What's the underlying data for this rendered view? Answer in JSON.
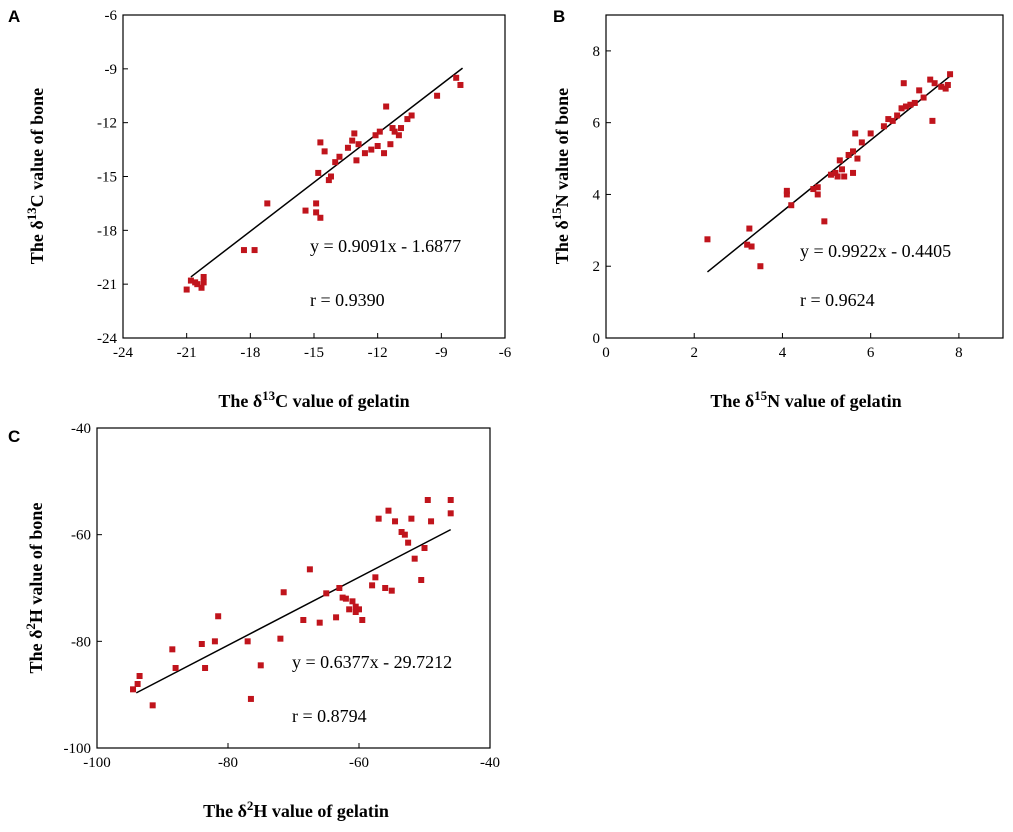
{
  "figure": {
    "marker_color": "#c0141c",
    "line_color": "#000000"
  },
  "chart_data": [
    {
      "panel": "A",
      "type": "scatter",
      "xlabel_prefix": "The δ",
      "xlabel_sup": "13",
      "xlabel_suffix": "C value of gelatin",
      "ylabel_prefix": "The δ",
      "ylabel_sup": "13",
      "ylabel_suffix": "C value of bone",
      "xlim": [
        -24,
        -6
      ],
      "ylim": [
        -24,
        -6
      ],
      "xticks": [
        -24,
        -21,
        -18,
        -15,
        -12,
        -9,
        -6
      ],
      "yticks": [
        -24,
        -21,
        -18,
        -15,
        -12,
        -9,
        -6
      ],
      "equation": "y = 0.9091x - 1.6877",
      "r_label": "r = 0.9390",
      "fit": {
        "slope": 0.9091,
        "intercept": -1.6877,
        "x_range": [
          -20.8,
          -8.0
        ]
      },
      "x": [
        -21.0,
        -20.8,
        -20.6,
        -20.5,
        -20.3,
        -20.2,
        -20.2,
        -18.3,
        -17.8,
        -17.2,
        -15.4,
        -14.9,
        -14.9,
        -14.7,
        -14.7,
        -14.5,
        -14.3,
        -14.2,
        -14.8,
        -13.4,
        -13.2,
        -13.1,
        -13.0,
        -12.9,
        -12.6,
        -12.3,
        -12.1,
        -12.0,
        -11.9,
        -11.7,
        -11.6,
        -11.4,
        -11.3,
        -11.2,
        -11.0,
        -10.9,
        -10.6,
        -10.4,
        -9.2,
        -8.3,
        -8.1,
        -14.0,
        -13.8
      ],
      "y": [
        -21.3,
        -20.8,
        -20.9,
        -21.0,
        -21.2,
        -20.9,
        -20.6,
        -19.1,
        -19.1,
        -16.5,
        -16.9,
        -16.5,
        -17.0,
        -17.3,
        -13.1,
        -13.6,
        -15.2,
        -15.0,
        -14.8,
        -13.4,
        -13.0,
        -12.6,
        -14.1,
        -13.2,
        -13.7,
        -13.5,
        -12.7,
        -13.3,
        -12.5,
        -13.7,
        -11.1,
        -13.2,
        -12.3,
        -12.5,
        -12.7,
        -12.3,
        -11.8,
        -11.6,
        -10.5,
        -9.5,
        -9.9,
        -14.2,
        -13.9
      ]
    },
    {
      "panel": "B",
      "type": "scatter",
      "xlabel_prefix": "The δ",
      "xlabel_sup": "15",
      "xlabel_suffix": "N value of gelatin",
      "ylabel_prefix": "The δ",
      "ylabel_sup": "15",
      "ylabel_suffix": "N value of bone",
      "xlim": [
        0,
        9
      ],
      "ylim": [
        0,
        9
      ],
      "xticks": [
        0,
        2,
        4,
        6,
        8
      ],
      "yticks": [
        0,
        2,
        4,
        6,
        8
      ],
      "equation": "y = 0.9922x - 0.4405",
      "r_label": "r = 0.9624",
      "fit": {
        "slope": 0.9922,
        "intercept": -0.4405,
        "x_range": [
          2.3,
          7.85
        ]
      },
      "x": [
        2.3,
        3.2,
        3.3,
        3.25,
        3.5,
        4.1,
        4.1,
        4.2,
        4.7,
        4.8,
        4.8,
        4.95,
        5.1,
        5.2,
        5.25,
        5.3,
        5.35,
        5.4,
        5.5,
        5.6,
        5.6,
        5.65,
        5.7,
        5.8,
        6.0,
        6.3,
        6.4,
        6.5,
        6.6,
        6.7,
        6.75,
        6.8,
        6.9,
        7.0,
        7.1,
        7.2,
        7.35,
        7.4,
        7.45,
        7.6,
        7.7,
        7.75,
        7.8
      ],
      "y": [
        2.75,
        2.6,
        2.55,
        3.05,
        2.0,
        4.0,
        4.1,
        3.7,
        4.15,
        4.2,
        4.0,
        3.25,
        4.55,
        4.6,
        4.5,
        4.95,
        4.7,
        4.5,
        5.1,
        4.6,
        5.2,
        5.7,
        5.0,
        5.45,
        5.7,
        5.9,
        6.1,
        6.05,
        6.2,
        6.4,
        7.1,
        6.45,
        6.5,
        6.55,
        6.9,
        6.7,
        7.2,
        6.05,
        7.1,
        7.0,
        6.95,
        7.05,
        7.35
      ]
    },
    {
      "panel": "C",
      "type": "scatter",
      "xlabel_prefix": "The δ",
      "xlabel_sup": "2",
      "xlabel_suffix": "H value of gelatin",
      "ylabel_prefix": "The δ",
      "ylabel_sup": "2",
      "ylabel_suffix": "H value of bone",
      "xlim": [
        -100,
        -40
      ],
      "ylim": [
        -100,
        -40
      ],
      "xticks": [
        -100,
        -80,
        -60,
        -40
      ],
      "yticks": [
        -100,
        -80,
        -60,
        -40
      ],
      "equation": "y = 0.6377x - 29.7212",
      "r_label": "r = 0.8794",
      "fit": {
        "slope": 0.6377,
        "intercept": -29.7212,
        "x_range": [
          -94,
          -46
        ]
      },
      "x": [
        -94.5,
        -93.8,
        -93.5,
        -91.5,
        -88.5,
        -88.0,
        -84.0,
        -83.5,
        -82.0,
        -81.5,
        -77.0,
        -76.5,
        -75.0,
        -72.0,
        -71.5,
        -68.5,
        -67.5,
        -66.0,
        -65.0,
        -63.5,
        -63.0,
        -62.5,
        -62.0,
        -61.5,
        -61.0,
        -60.5,
        -60.0,
        -59.5,
        -58.0,
        -57.5,
        -57.0,
        -56.0,
        -55.5,
        -55.0,
        -54.5,
        -53.5,
        -53.0,
        -52.5,
        -52.0,
        -51.5,
        -50.5,
        -50.0,
        -49.5,
        -49.0,
        -46.0,
        -46.0,
        -60.5
      ],
      "y": [
        -89.0,
        -88.0,
        -86.5,
        -92.0,
        -81.5,
        -85.0,
        -80.5,
        -85.0,
        -80.0,
        -75.3,
        -80.0,
        -90.8,
        -84.5,
        -79.5,
        -70.8,
        -76.0,
        -66.5,
        -76.5,
        -71.0,
        -75.5,
        -70.0,
        -71.8,
        -72.0,
        -74.0,
        -72.5,
        -73.5,
        -74.0,
        -76.0,
        -69.5,
        -68.0,
        -57.0,
        -70.0,
        -55.5,
        -70.5,
        -57.5,
        -59.5,
        -60.0,
        -61.5,
        -57.0,
        -64.5,
        -68.5,
        -62.5,
        -53.5,
        -57.5,
        -53.5,
        -56.0,
        -74.5
      ]
    }
  ]
}
